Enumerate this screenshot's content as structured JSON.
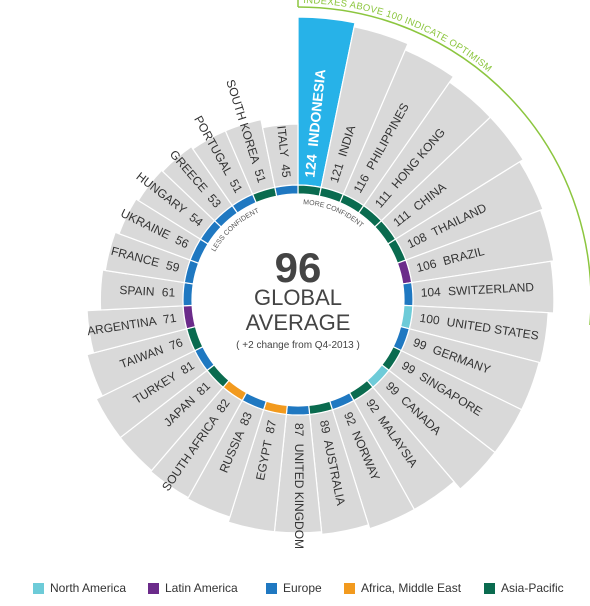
{
  "chart_data": {
    "type": "radial-bar",
    "center": {
      "value": "96",
      "title_line1": "GLOBAL",
      "title_line2": "AVERAGE",
      "note": "( +2 change from Q4-2013 )"
    },
    "annotations": {
      "optimism_arc": "INDEXES ABOVE 100 INDICATE OPTIMISM",
      "more_confident": "MORE CONFIDENT",
      "less_confident": "LESS CONFIDENT"
    },
    "scale_max": 124,
    "countries": [
      {
        "name": "INDONESIA",
        "value": 124,
        "region": "Asia-Pacific"
      },
      {
        "name": "INDIA",
        "value": 121,
        "region": "Asia-Pacific"
      },
      {
        "name": "PHILIPPINES",
        "value": 116,
        "region": "Asia-Pacific"
      },
      {
        "name": "HONG KONG",
        "value": 111,
        "region": "Asia-Pacific"
      },
      {
        "name": "CHINA",
        "value": 111,
        "region": "Asia-Pacific"
      },
      {
        "name": "THAILAND",
        "value": 108,
        "region": "Asia-Pacific"
      },
      {
        "name": "BRAZIL",
        "value": 106,
        "region": "Latin America"
      },
      {
        "name": "SWITZERLAND",
        "value": 104,
        "region": "Europe"
      },
      {
        "name": "UNITED STATES",
        "value": 100,
        "region": "North America"
      },
      {
        "name": "GERMANY",
        "value": 99,
        "region": "Europe"
      },
      {
        "name": "SINGAPORE",
        "value": 99,
        "region": "Asia-Pacific"
      },
      {
        "name": "CANADA",
        "value": 99,
        "region": "North America"
      },
      {
        "name": "MALAYSIA",
        "value": 92,
        "region": "Asia-Pacific"
      },
      {
        "name": "NORWAY",
        "value": 92,
        "region": "Europe"
      },
      {
        "name": "AUSTRALIA",
        "value": 89,
        "region": "Asia-Pacific"
      },
      {
        "name": "UNITED KINGDOM",
        "value": 87,
        "region": "Europe"
      },
      {
        "name": "EGYPT",
        "value": 87,
        "region": "Africa, Middle East"
      },
      {
        "name": "RUSSIA",
        "value": 83,
        "region": "Europe"
      },
      {
        "name": "SOUTH AFRICA",
        "value": 82,
        "region": "Africa, Middle East"
      },
      {
        "name": "JAPAN",
        "value": 81,
        "region": "Asia-Pacific"
      },
      {
        "name": "TURKEY",
        "value": 81,
        "region": "Europe"
      },
      {
        "name": "TAIWAN",
        "value": 76,
        "region": "Asia-Pacific"
      },
      {
        "name": "ARGENTINA",
        "value": 71,
        "region": "Latin America"
      },
      {
        "name": "SPAIN",
        "value": 61,
        "region": "Europe"
      },
      {
        "name": "FRANCE",
        "value": 59,
        "region": "Europe"
      },
      {
        "name": "UKRAINE",
        "value": 56,
        "region": "Europe"
      },
      {
        "name": "HUNGARY",
        "value": 54,
        "region": "Europe"
      },
      {
        "name": "GREECE",
        "value": 53,
        "region": "Europe"
      },
      {
        "name": "PORTUGAL",
        "value": 51,
        "region": "Europe"
      },
      {
        "name": "SOUTH KOREA",
        "value": 51,
        "region": "Asia-Pacific"
      },
      {
        "name": "ITALY",
        "value": 45,
        "region": "Europe"
      }
    ],
    "highlight": "INDONESIA",
    "legend": [
      {
        "label": "North America",
        "region": "North America",
        "color": "#6dcbd8"
      },
      {
        "label": "Latin America",
        "region": "Latin America",
        "color": "#6b2b8a"
      },
      {
        "label": "Europe",
        "region": "Europe",
        "color": "#1f78c1"
      },
      {
        "label": "Africa, Middle East",
        "region": "Africa, Middle East",
        "color": "#f29a1e"
      },
      {
        "label": "Asia-Pacific",
        "region": "Asia-Pacific",
        "color": "#0a6b4f"
      }
    ],
    "colors": {
      "bar": "#d9d9d9",
      "highlight_bar": "#27b2e8",
      "optimism_line": "#8cc63f",
      "center_text": "#444444",
      "label_text": "#333333"
    }
  }
}
